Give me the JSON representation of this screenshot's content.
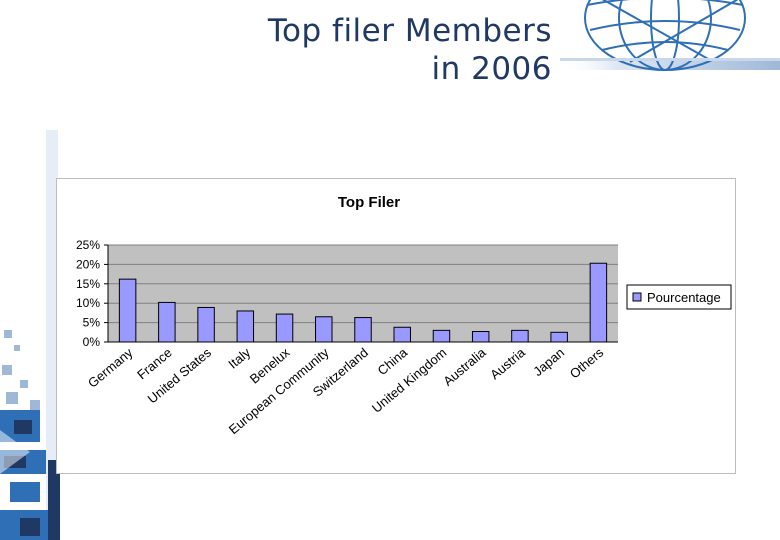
{
  "slide": {
    "title_line1": "Top filer Members",
    "title_line2": "in 2006"
  },
  "colors": {
    "title": "#1f3864",
    "plot_area": "#c0c0c0",
    "bar_fill": "#9999ff",
    "bar_stroke": "#000000",
    "gridline": "#808080",
    "decor_blue": "#2f6fb6"
  },
  "decor": {
    "top_right": "globe-wireframe",
    "left_edge": "blue-pixel-strip"
  },
  "chart_data": {
    "type": "bar",
    "title": "Top Filer",
    "xlabel": "",
    "ylabel": "",
    "categories": [
      "Germany",
      "France",
      "United States",
      "Italy",
      "Benelux",
      "European Community",
      "Switzerland",
      "China",
      "United Kingdom",
      "Australia",
      "Austria",
      "Japan",
      "Others"
    ],
    "series": [
      {
        "name": "Pourcentage",
        "values": [
          16.2,
          10.2,
          8.9,
          8.0,
          7.2,
          6.5,
          6.3,
          3.8,
          3.0,
          2.7,
          3.0,
          2.5,
          20.3
        ]
      }
    ],
    "ylim": [
      0,
      25
    ],
    "yticks": [
      0,
      5,
      10,
      15,
      20,
      25
    ],
    "ytick_labels": [
      "0%",
      "5%",
      "10%",
      "15%",
      "20%",
      "25%"
    ],
    "grid": true,
    "legend_position": "right"
  }
}
